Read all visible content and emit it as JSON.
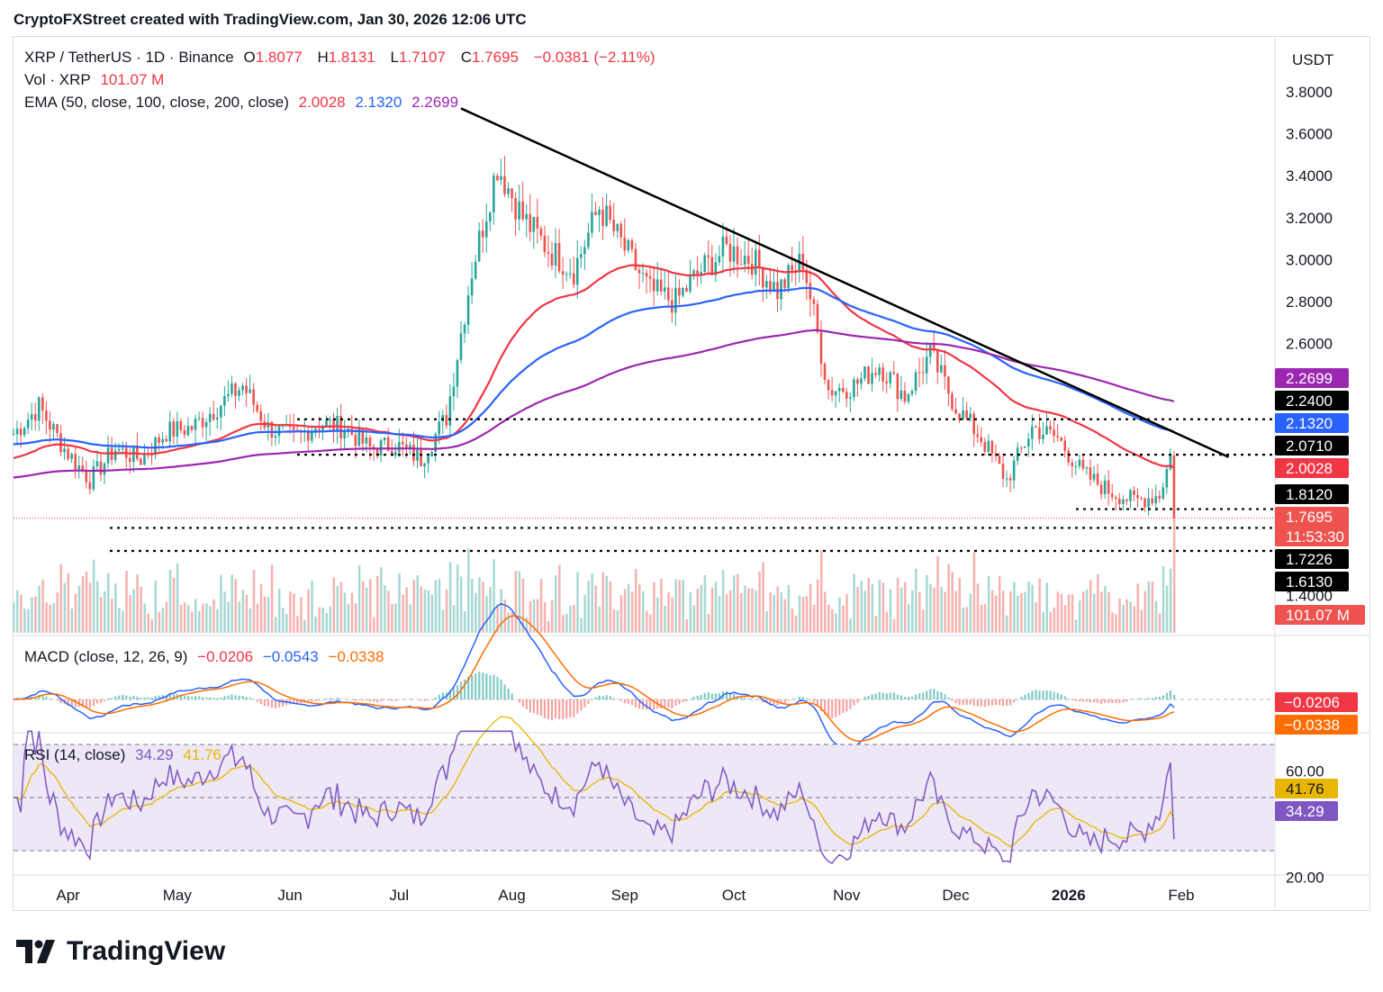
{
  "header": {
    "text": "CryptoFXStreet created with TradingView.com, Jan 30, 2026 12:06 UTC"
  },
  "legend": {
    "symbol": "XRP / TetherUS · 1D · Binance",
    "o_label": "O",
    "o": "1.8077",
    "h_label": "H",
    "h": "1.8131",
    "l_label": "L",
    "l": "1.7107",
    "c_label": "C",
    "c": "1.7695",
    "change": "−0.0381 (−2.11%)",
    "vol_label": "Vol · XRP",
    "vol": "101.07 M",
    "ema_label": "EMA (50, close, 100, close, 200, close)",
    "ema50": "2.0028",
    "ema100": "2.1320",
    "ema200": "2.2699",
    "macd_label": "MACD (close, 12, 26, 9)",
    "macd_hist": "−0.0206",
    "macd_line": "−0.0543",
    "macd_signal": "−0.0338",
    "rsi_label": "RSI (14, close)",
    "rsi": "34.29",
    "rsi_ma": "41.76"
  },
  "colors": {
    "up": "#26a69a",
    "down": "#ef5350",
    "ema50": "#f23645",
    "ema100": "#2962ff",
    "ema200": "#9c27b0",
    "trend": "#000000",
    "macd": "#2962ff",
    "signal": "#ff6d00",
    "rsi": "#7e57c2",
    "rsi_ma": "#e8b600",
    "rsi_band": "#ede7f6"
  },
  "brand": {
    "name": "TradingView"
  },
  "chart_data": {
    "type": "candlestick",
    "currency": "USDT",
    "y_ticks": [
      "3.8000",
      "3.6000",
      "3.4000",
      "3.2000",
      "3.0000",
      "2.8000",
      "2.6000",
      "1.4000"
    ],
    "x_labels": [
      "Apr",
      "May",
      "Jun",
      "Jul",
      "Aug",
      "Sep",
      "Oct",
      "Nov",
      "Dec",
      "2026",
      "Feb"
    ],
    "rsi_ticks": [
      "60.00",
      "20.00"
    ],
    "price_badges": [
      {
        "value": "2.2699",
        "kind": "ema200"
      },
      {
        "value": "2.2400",
        "kind": "level"
      },
      {
        "value": "2.1320",
        "kind": "ema100"
      },
      {
        "value": "2.0710",
        "kind": "level"
      },
      {
        "value": "2.0028",
        "kind": "ema50"
      },
      {
        "value": "1.8120",
        "kind": "level"
      },
      {
        "value": "1.7695",
        "kind": "last",
        "countdown": "11:53:30"
      },
      {
        "value": "1.7226",
        "kind": "level"
      },
      {
        "value": "1.6130",
        "kind": "level"
      },
      {
        "value": "101.07 M",
        "kind": "volume"
      }
    ],
    "macd_badges": [
      "−0.0206",
      "−0.0338"
    ],
    "rsi_badges": [
      "41.76",
      "34.29"
    ],
    "support_levels": [
      2.24,
      2.071,
      1.812,
      1.7226,
      1.613
    ],
    "trendline": {
      "from": {
        "date": "2025-07-18",
        "price": 3.72
      },
      "to": {
        "date": "2026-02-14",
        "price": 2.06
      }
    },
    "closes_weekly": [
      2.17,
      2.3,
      2.1,
      1.95,
      2.1,
      2.05,
      2.18,
      2.2,
      2.3,
      2.4,
      2.2,
      2.15,
      2.22,
      2.2,
      2.1,
      2.12,
      2.05,
      2.25,
      2.95,
      3.45,
      3.2,
      3.05,
      2.95,
      3.25,
      3.05,
      2.85,
      2.8,
      2.95,
      3.05,
      3.0,
      2.85,
      3.0,
      2.38,
      2.4,
      2.5,
      2.35,
      2.55,
      2.3,
      2.15,
      1.95,
      2.2,
      2.15,
      1.98,
      1.9,
      1.85,
      1.88,
      2.3,
      2.05,
      1.95,
      1.88,
      1.7695
    ]
  }
}
